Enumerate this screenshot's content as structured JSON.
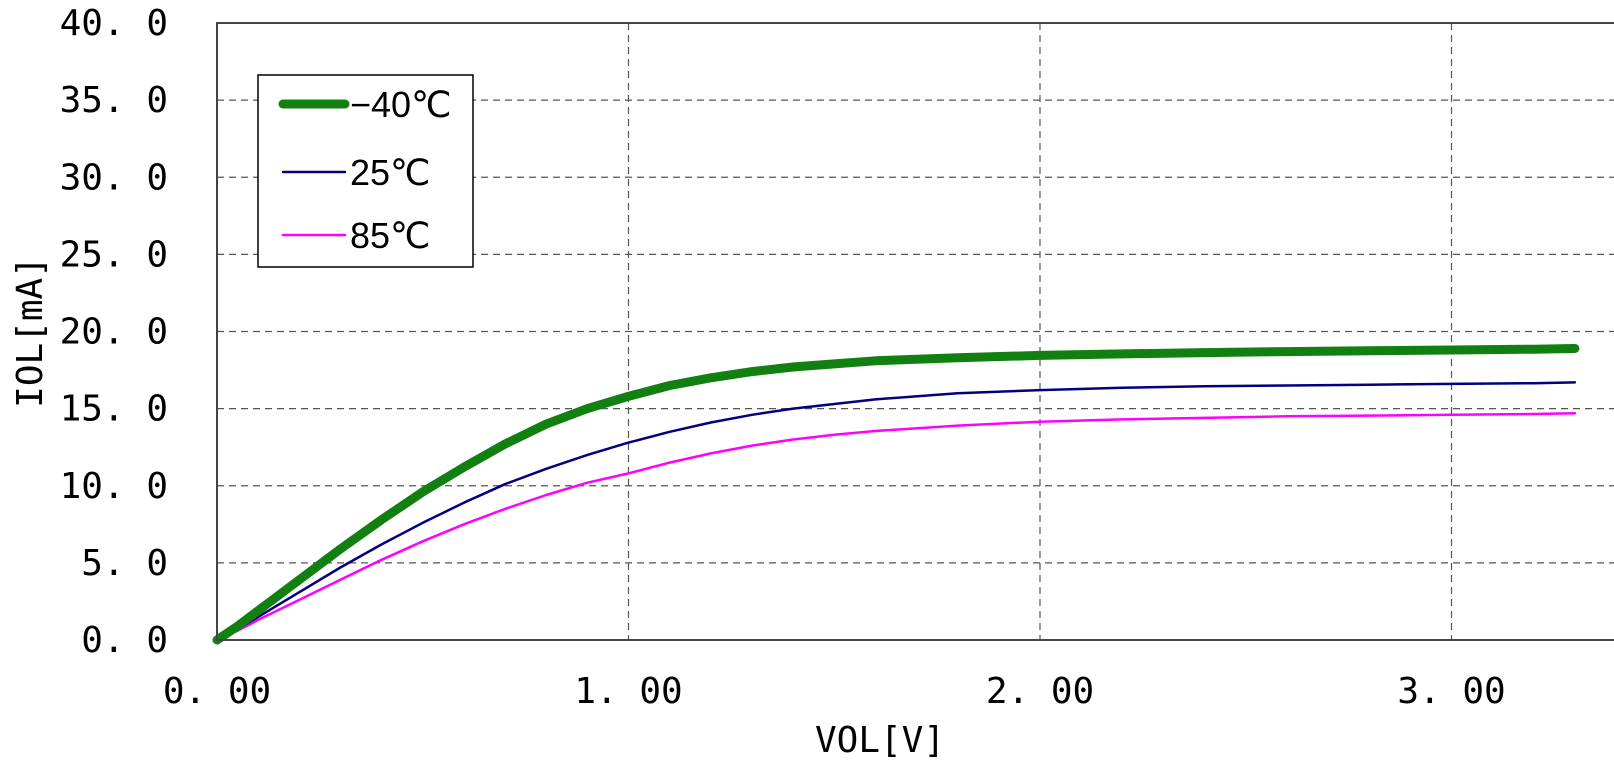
{
  "chart_data": {
    "type": "line",
    "title": "",
    "xlabel": "VOL[V]",
    "ylabel": "IOL[mA]",
    "xlim": [
      0,
      3.3
    ],
    "ylim": [
      0,
      40
    ],
    "grid": true,
    "legend_position": "top-left",
    "x_ticks": [
      0,
      1,
      2,
      3
    ],
    "x_tick_labels": [
      "0. 00",
      "1. 00",
      "2. 00",
      "3. 00"
    ],
    "y_ticks": [
      0,
      5,
      10,
      15,
      20,
      25,
      30,
      35,
      40
    ],
    "y_tick_labels": [
      "0. 0",
      "5. 0",
      "10. 0",
      "15. 0",
      "20. 0",
      "25. 0",
      "30. 0",
      "35. 0",
      "40. 0"
    ],
    "x": [
      0,
      0.05,
      0.1,
      0.2,
      0.3,
      0.4,
      0.5,
      0.6,
      0.7,
      0.8,
      0.9,
      1.0,
      1.1,
      1.2,
      1.3,
      1.4,
      1.5,
      1.6,
      1.8,
      2.0,
      2.2,
      2.4,
      2.6,
      2.8,
      3.0,
      3.2,
      3.3
    ],
    "series": [
      {
        "name": "−40℃",
        "color": "#118011",
        "values": [
          0,
          0.9,
          1.9,
          3.9,
          5.9,
          7.8,
          9.6,
          11.2,
          12.7,
          14.0,
          15.0,
          15.8,
          16.5,
          17.0,
          17.4,
          17.7,
          17.9,
          18.1,
          18.3,
          18.45,
          18.55,
          18.63,
          18.7,
          18.75,
          18.8,
          18.85,
          18.9
        ]
      },
      {
        "name": "25℃",
        "color": "#000080",
        "values": [
          0,
          0.7,
          1.5,
          3.1,
          4.7,
          6.2,
          7.6,
          8.9,
          10.1,
          11.1,
          12.0,
          12.8,
          13.5,
          14.1,
          14.6,
          15.0,
          15.3,
          15.6,
          16.0,
          16.2,
          16.35,
          16.45,
          16.5,
          16.55,
          16.6,
          16.65,
          16.7
        ]
      },
      {
        "name": "85℃",
        "color": "#ff00ff",
        "values": [
          0,
          0.6,
          1.3,
          2.6,
          3.9,
          5.2,
          6.4,
          7.5,
          8.5,
          9.4,
          10.2,
          10.8,
          11.5,
          12.1,
          12.6,
          13.0,
          13.3,
          13.55,
          13.9,
          14.15,
          14.3,
          14.4,
          14.5,
          14.55,
          14.6,
          14.65,
          14.7
        ]
      }
    ]
  }
}
